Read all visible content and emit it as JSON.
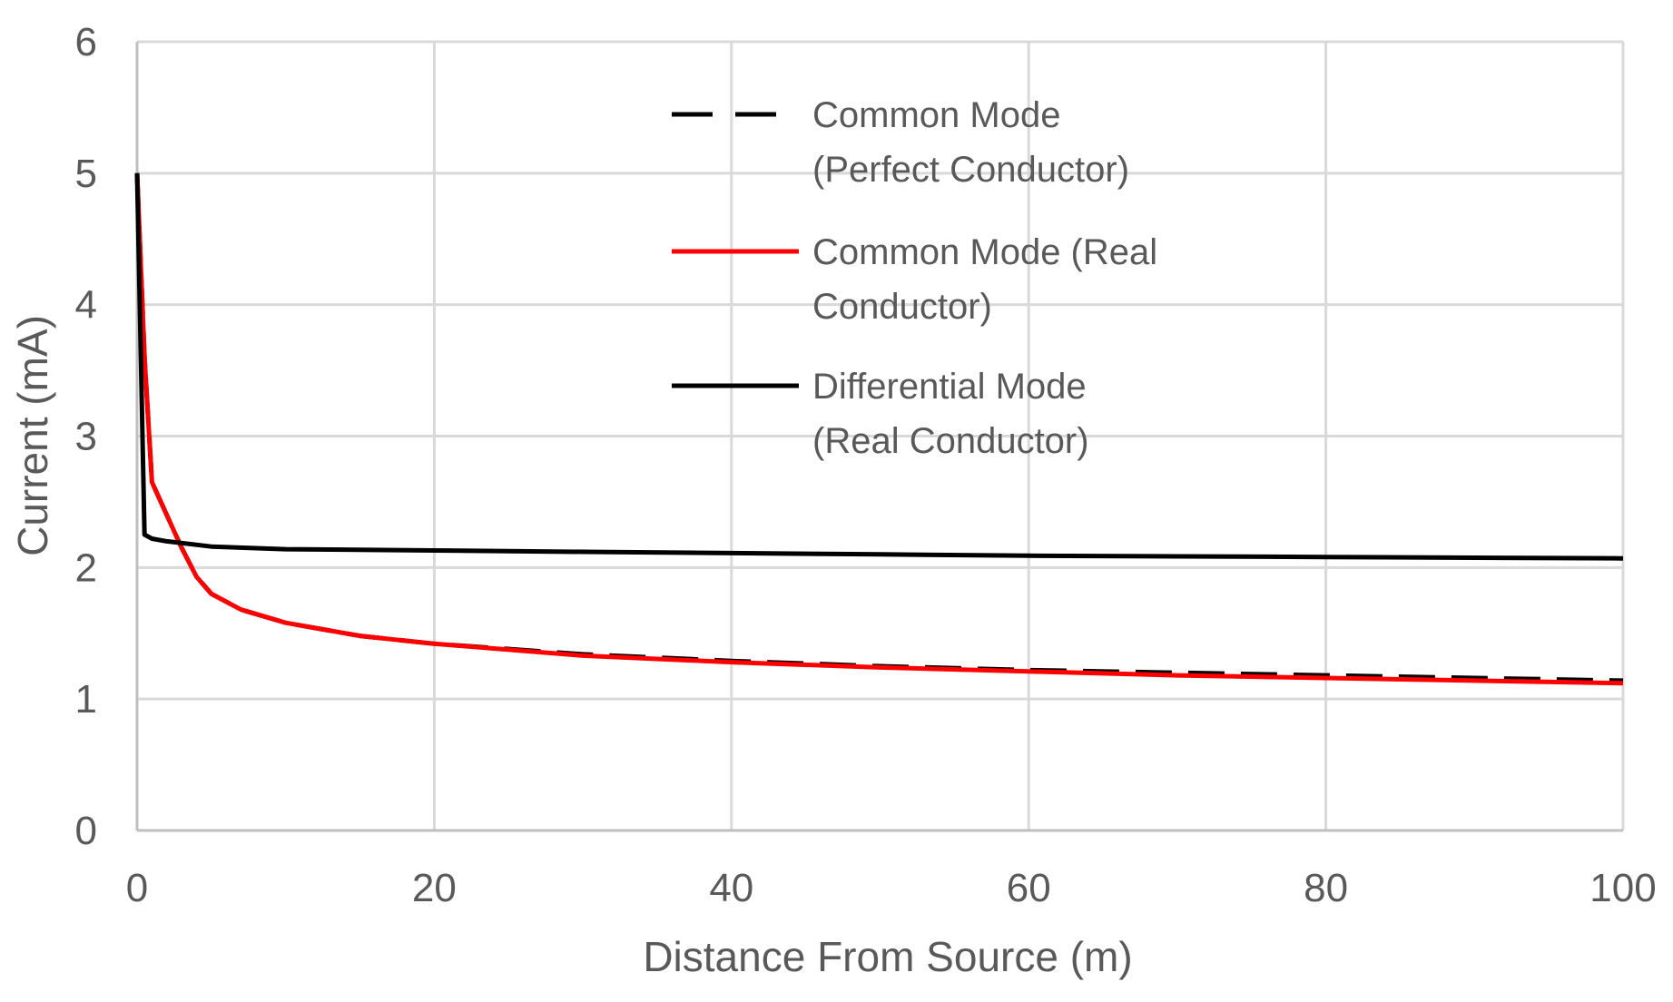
{
  "chart_data": {
    "type": "line",
    "title": "",
    "xlabel": "Distance From Source (m)",
    "ylabel": "Current (mA)",
    "xlim": [
      0,
      100
    ],
    "ylim": [
      0,
      6
    ],
    "x_ticks": [
      0,
      20,
      40,
      60,
      80,
      100
    ],
    "y_ticks": [
      0,
      1,
      2,
      3,
      4,
      5,
      6
    ],
    "x_tick_labels": [
      "0",
      "20",
      "40",
      "60",
      "80",
      "100"
    ],
    "y_tick_labels": [
      "0",
      "1",
      "2",
      "3",
      "4",
      "5",
      "6"
    ],
    "grid": true,
    "legend_position": "top-center",
    "colors": {
      "grid": "#d9d9d9",
      "axis": "#bfbfbf",
      "red": "#ff0000",
      "black": "#000000"
    },
    "series": [
      {
        "name": "Common Mode (Perfect Conductor)",
        "legend_lines": [
          "Common Mode",
          "(Perfect Conductor)"
        ],
        "color": "#000000",
        "dash": "dashed",
        "x": [
          0,
          0.5,
          1,
          2,
          3,
          4,
          5,
          7,
          10,
          15,
          20,
          30,
          40,
          50,
          60,
          70,
          80,
          90,
          100
        ],
        "y": [
          5.0,
          3.6,
          2.65,
          2.4,
          2.15,
          1.93,
          1.8,
          1.68,
          1.58,
          1.48,
          1.42,
          1.34,
          1.29,
          1.25,
          1.22,
          1.2,
          1.18,
          1.16,
          1.14
        ]
      },
      {
        "name": "Common Mode (Real Conductor)",
        "legend_lines": [
          "Common Mode (Real",
          "Conductor)"
        ],
        "color": "#ff0000",
        "dash": "solid",
        "x": [
          0,
          0.5,
          1,
          2,
          3,
          4,
          5,
          7,
          10,
          15,
          20,
          30,
          40,
          50,
          60,
          70,
          80,
          90,
          100
        ],
        "y": [
          5.0,
          3.6,
          2.65,
          2.4,
          2.15,
          1.93,
          1.8,
          1.68,
          1.58,
          1.48,
          1.42,
          1.33,
          1.28,
          1.24,
          1.21,
          1.18,
          1.16,
          1.14,
          1.12
        ]
      },
      {
        "name": "Differential Mode (Real Conductor)",
        "legend_lines": [
          "Differential Mode",
          "(Real Conductor)"
        ],
        "color": "#000000",
        "dash": "solid",
        "x": [
          0,
          0.5,
          1,
          2,
          5,
          10,
          20,
          30,
          40,
          50,
          60,
          70,
          80,
          90,
          100
        ],
        "y": [
          5.0,
          2.25,
          2.22,
          2.2,
          2.16,
          2.14,
          2.13,
          2.12,
          2.11,
          2.1,
          2.09,
          2.085,
          2.08,
          2.075,
          2.07
        ]
      }
    ]
  }
}
